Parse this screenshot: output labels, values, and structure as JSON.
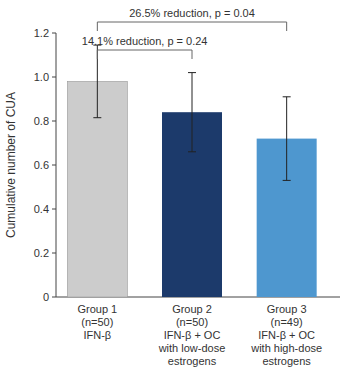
{
  "chart_data": {
    "type": "bar",
    "y_label": "Cumulative number of CUA",
    "categories": [
      [
        "Group 1",
        "(n=50)",
        "IFN-β"
      ],
      [
        "Group 2",
        "(n=50)",
        "IFN-β + OC",
        "with low-dose",
        "estrogens"
      ],
      [
        "Group 3",
        "(n=49)",
        "IFN-β + OC",
        "with high-dose",
        "estrogens"
      ]
    ],
    "values": [
      0.98,
      0.84,
      0.72
    ],
    "errors": [
      0.165,
      0.18,
      0.19
    ],
    "colors": [
      "#cccccc",
      "#1c3a6b",
      "#4e97cf"
    ],
    "ylim": [
      0,
      1.2
    ],
    "yticks": [
      0,
      0.2,
      0.4,
      0.6,
      0.8,
      {
        "value": 1,
        "label": "1.0"
      },
      1.2
    ],
    "grid": false,
    "annotations": [
      {
        "text": "26.5% reduction, p = 0.04",
        "between": [
          0,
          2
        ]
      },
      {
        "text": "14.1% reduction, p = 0.24",
        "between": [
          0,
          1
        ]
      }
    ]
  }
}
